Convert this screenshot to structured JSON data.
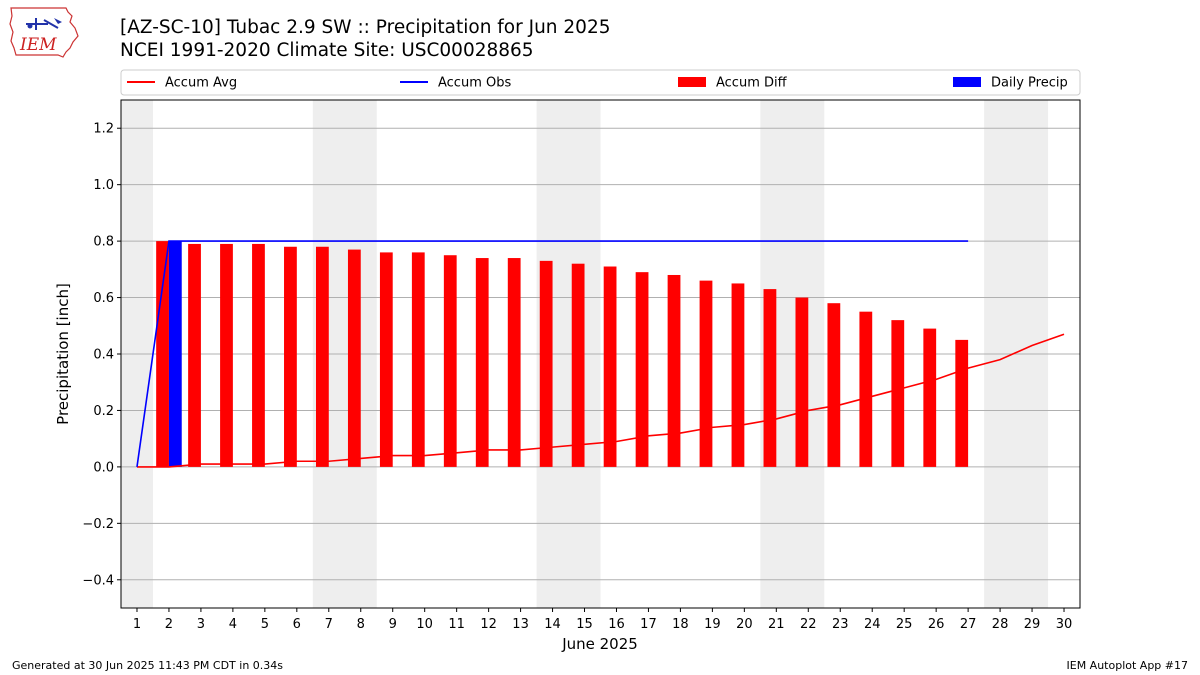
{
  "header": {
    "title_line1": "[AZ-SC-10] Tubac 2.9 SW :: Precipitation for Jun 2025",
    "title_line2": "NCEI 1991-2020 Climate Site: USC00028865",
    "logo_text": "IEM"
  },
  "footer": {
    "generated": "Generated at 30 Jun 2025 11:43 PM CDT in 0.34s",
    "app": "IEM Autoplot App #17"
  },
  "chart_data": {
    "type": "bar",
    "xlabel": "June 2025",
    "ylabel": "Precipitation [inch]",
    "x": [
      1,
      2,
      3,
      4,
      5,
      6,
      7,
      8,
      9,
      10,
      11,
      12,
      13,
      14,
      15,
      16,
      17,
      18,
      19,
      20,
      21,
      22,
      23,
      24,
      25,
      26,
      27,
      28,
      29,
      30
    ],
    "xlim": [
      0.5,
      30.5
    ],
    "ylim": [
      -0.5,
      1.3
    ],
    "yticks": [
      -0.4,
      -0.2,
      0.0,
      0.2,
      0.4,
      0.6,
      0.8,
      1.0,
      1.2
    ],
    "ytick_labels": [
      "−0.4",
      "−0.2",
      "0.0",
      "0.2",
      "0.4",
      "0.6",
      "0.8",
      "1.0",
      "1.2"
    ],
    "grid": true,
    "weekend_shading": [
      [
        0.5,
        1.5
      ],
      [
        6.5,
        8.5
      ],
      [
        13.5,
        15.5
      ],
      [
        20.5,
        22.5
      ],
      [
        27.5,
        29.5
      ]
    ],
    "legend": {
      "placement": "top",
      "entries": [
        "Accum Avg",
        "Accum Obs",
        "Accum Diff",
        "Daily Precip"
      ]
    },
    "series": [
      {
        "name": "Accum Avg",
        "type": "line",
        "color": "#ff0000",
        "x": [
          1,
          2,
          3,
          4,
          5,
          6,
          7,
          8,
          9,
          10,
          11,
          12,
          13,
          14,
          15,
          16,
          17,
          18,
          19,
          20,
          21,
          22,
          23,
          24,
          25,
          26,
          27,
          28,
          29,
          30
        ],
        "values": [
          0.0,
          0.0,
          0.01,
          0.01,
          0.01,
          0.02,
          0.02,
          0.03,
          0.04,
          0.04,
          0.05,
          0.06,
          0.06,
          0.07,
          0.08,
          0.09,
          0.11,
          0.12,
          0.14,
          0.15,
          0.17,
          0.2,
          0.22,
          0.25,
          0.28,
          0.31,
          0.35,
          0.38,
          0.43,
          0.47
        ]
      },
      {
        "name": "Accum Obs",
        "type": "line",
        "color": "#0000ff",
        "x": [
          1,
          2,
          3,
          4,
          5,
          6,
          7,
          8,
          9,
          10,
          11,
          12,
          13,
          14,
          15,
          16,
          17,
          18,
          19,
          20,
          21,
          22,
          23,
          24,
          25,
          26,
          27
        ],
        "values": [
          0.0,
          0.8,
          0.8,
          0.8,
          0.8,
          0.8,
          0.8,
          0.8,
          0.8,
          0.8,
          0.8,
          0.8,
          0.8,
          0.8,
          0.8,
          0.8,
          0.8,
          0.8,
          0.8,
          0.8,
          0.8,
          0.8,
          0.8,
          0.8,
          0.8,
          0.8,
          0.8
        ]
      },
      {
        "name": "Accum Diff",
        "type": "bar",
        "color": "#ff0000",
        "x": [
          2,
          3,
          4,
          5,
          6,
          7,
          8,
          9,
          10,
          11,
          12,
          13,
          14,
          15,
          16,
          17,
          18,
          19,
          20,
          21,
          22,
          23,
          24,
          25,
          26,
          27
        ],
        "values": [
          0.8,
          0.79,
          0.79,
          0.79,
          0.78,
          0.78,
          0.77,
          0.76,
          0.76,
          0.75,
          0.74,
          0.74,
          0.73,
          0.72,
          0.71,
          0.69,
          0.68,
          0.66,
          0.65,
          0.63,
          0.6,
          0.58,
          0.55,
          0.52,
          0.49,
          0.45
        ]
      },
      {
        "name": "Daily Precip",
        "type": "bar",
        "color": "#0000ff",
        "x": [
          2
        ],
        "values": [
          0.8
        ]
      }
    ]
  }
}
